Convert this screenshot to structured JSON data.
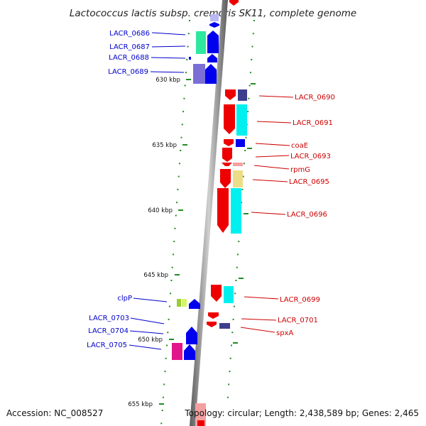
{
  "title": "Lactococcus lactis subsp. cremoris SK11, complete genome",
  "footer": {
    "accession": "Accession: NC_008527",
    "summary": "Topology: circular; Length: 2,438,589 bp; Genes: 2,465"
  },
  "scale_labels": [
    "630 kbp",
    "635 kbp",
    "640 kbp",
    "645 kbp",
    "650 kbp",
    "655 kbp"
  ],
  "genes_left": [
    "LACR_0686",
    "LACR_0687",
    "LACR_0688",
    "LACR_0689",
    "clpP",
    "LACR_0703",
    "LACR_0704",
    "LACR_0705"
  ],
  "genes_right": [
    "LACR_0690",
    "LACR_0691",
    "coaE",
    "LACR_0693",
    "rpmG",
    "LACR_0695",
    "LACR_0696",
    "LACR_0699",
    "LACR_0701",
    "spxA"
  ],
  "colors": {
    "forward_strand": "#0000ee",
    "reverse_strand": "#ee0000",
    "scale_tick": "#228b22",
    "backbone": "#8a8a8a",
    "label_left": "#0000cc",
    "label_right": "#cc0000"
  }
}
